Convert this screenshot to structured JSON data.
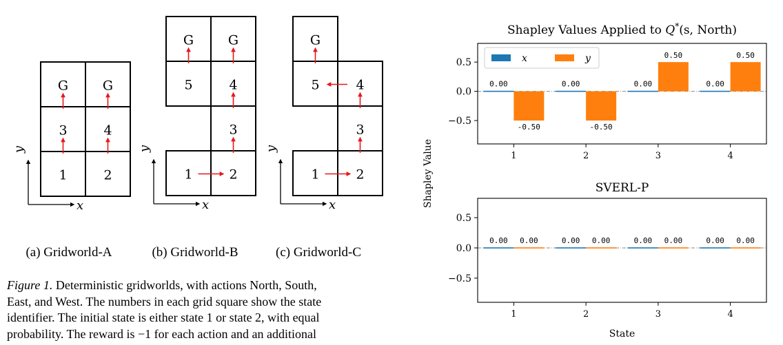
{
  "gridworlds": [
    {
      "caption": "(a) Gridworld-A",
      "cells": [
        {
          "col": 0,
          "row": 0,
          "label": "G"
        },
        {
          "col": 1,
          "row": 0,
          "label": "G"
        },
        {
          "col": 0,
          "row": 1,
          "label": "3"
        },
        {
          "col": 1,
          "row": 1,
          "label": "4"
        },
        {
          "col": 0,
          "row": 2,
          "label": "1"
        },
        {
          "col": 1,
          "row": 2,
          "label": "2"
        }
      ],
      "arrows": [
        {
          "from": [
            0,
            2
          ],
          "dir": "up"
        },
        {
          "from": [
            1,
            2
          ],
          "dir": "up"
        },
        {
          "from": [
            0,
            1
          ],
          "dir": "up"
        },
        {
          "from": [
            1,
            1
          ],
          "dir": "up"
        }
      ],
      "axis_x": "x",
      "axis_y": "y"
    },
    {
      "caption": "(b) Gridworld-B",
      "cells": [
        {
          "col": 0,
          "row": 0,
          "label": "G"
        },
        {
          "col": 1,
          "row": 0,
          "label": "G"
        },
        {
          "col": 0,
          "row": 1,
          "label": "5"
        },
        {
          "col": 1,
          "row": 1,
          "label": "4"
        },
        {
          "col": 1,
          "row": 2,
          "label": "3"
        },
        {
          "col": 0,
          "row": 3,
          "label": "1"
        },
        {
          "col": 1,
          "row": 3,
          "label": "2"
        }
      ],
      "arrows": [
        {
          "from": [
            0,
            3
          ],
          "dir": "right"
        },
        {
          "from": [
            1,
            3
          ],
          "dir": "up"
        },
        {
          "from": [
            1,
            2
          ],
          "dir": "up"
        },
        {
          "from": [
            1,
            1
          ],
          "dir": "up"
        },
        {
          "from": [
            0,
            1
          ],
          "dir": "up"
        }
      ],
      "axis_x": "x",
      "axis_y": "y"
    },
    {
      "caption": "(c) Gridworld-C",
      "cells": [
        {
          "col": 0,
          "row": 0,
          "label": "G"
        },
        {
          "col": 0,
          "row": 1,
          "label": "5"
        },
        {
          "col": 1,
          "row": 1,
          "label": "4"
        },
        {
          "col": 1,
          "row": 2,
          "label": "3"
        },
        {
          "col": 0,
          "row": 3,
          "label": "1"
        },
        {
          "col": 1,
          "row": 3,
          "label": "2"
        }
      ],
      "arrows": [
        {
          "from": [
            0,
            3
          ],
          "dir": "right"
        },
        {
          "from": [
            1,
            3
          ],
          "dir": "up"
        },
        {
          "from": [
            1,
            2
          ],
          "dir": "up"
        },
        {
          "from": [
            1,
            1
          ],
          "dir": "left"
        },
        {
          "from": [
            0,
            1
          ],
          "dir": "up"
        }
      ],
      "axis_x": "x",
      "axis_y": "y"
    }
  ],
  "figure_caption": {
    "label": "Figure 1.",
    "lines": [
      "Deterministic gridworlds, with actions North, South,",
      "East, and West. The numbers in each grid square show the state",
      "identifier. The initial state is either state 1 or state 2, with equal",
      "probability. The reward is −1 for each action and an additional"
    ]
  },
  "chart_shared": {
    "ylabel": "Shapley Value",
    "xlabel": "State",
    "bar_width": 0.42,
    "colors": {
      "x": "#1f77b4",
      "y": "#ff7f0e",
      "zero_line": "#888888"
    }
  },
  "chart_data": [
    {
      "type": "bar",
      "title": "Shapley Values Applied to Q*(s, North)",
      "title_parts": {
        "pre": "Shapley Values Applied to ",
        "Q": "Q",
        "star": "*",
        "args": "(s, North)"
      },
      "categories": [
        "1",
        "2",
        "3",
        "4"
      ],
      "series": [
        {
          "name": "x",
          "values": [
            0.0,
            0.0,
            0.0,
            0.0
          ]
        },
        {
          "name": "y",
          "values": [
            -0.5,
            -0.5,
            0.5,
            0.5
          ]
        }
      ],
      "data_labels": [
        [
          "0.00",
          "0.00",
          "0.00",
          "0.00"
        ],
        [
          "-0.50",
          "-0.50",
          "0.50",
          "0.50"
        ]
      ],
      "ylim": [
        -0.9,
        0.82
      ],
      "yticks": [
        -0.5,
        0.0,
        0.5
      ],
      "ytick_labels": [
        "−0.5",
        "0.0",
        "0.5"
      ],
      "legend": "top-left",
      "xlabel": ""
    },
    {
      "type": "bar",
      "title": "SVERL-P",
      "categories": [
        "1",
        "2",
        "3",
        "4"
      ],
      "series": [
        {
          "name": "x",
          "values": [
            0.0,
            0.0,
            0.0,
            0.0
          ]
        },
        {
          "name": "y",
          "values": [
            0.0,
            0.0,
            0.0,
            0.0
          ]
        }
      ],
      "data_labels": [
        [
          "0.00",
          "0.00",
          "0.00",
          "0.00"
        ],
        [
          "0.00",
          "0.00",
          "0.00",
          "0.00"
        ]
      ],
      "ylim": [
        -0.9,
        0.82
      ],
      "yticks": [
        -0.5,
        0.0,
        0.5
      ],
      "ytick_labels": [
        "−0.5",
        "0.0",
        "0.5"
      ],
      "xlabel": "State"
    }
  ]
}
